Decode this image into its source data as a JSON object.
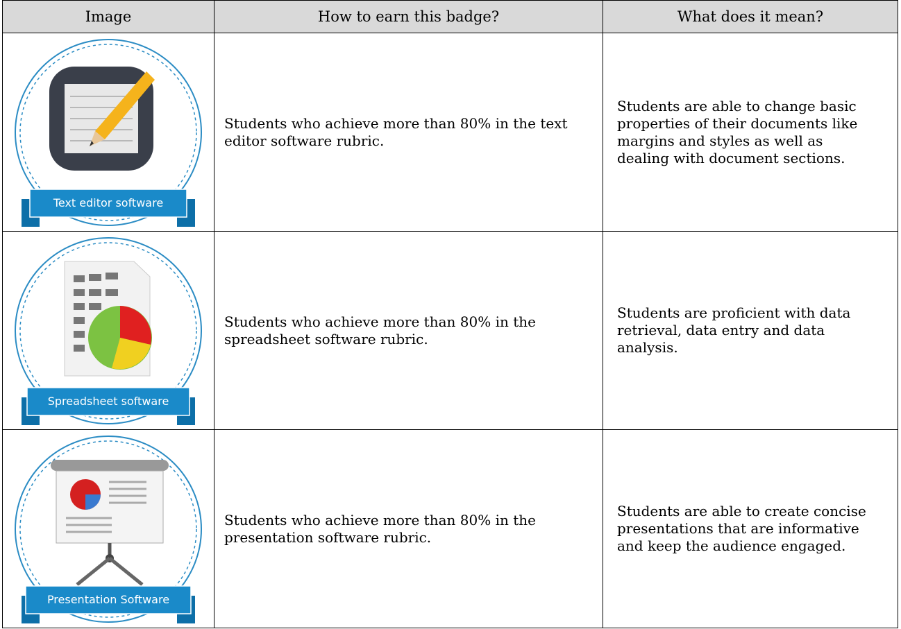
{
  "table": {
    "header": [
      "Image",
      "How to earn this badge?",
      "What does it mean?"
    ],
    "rows": [
      {
        "badge": "Text editor software",
        "how": "Students who achieve more than 80% in the text editor software rubric.",
        "meaning": "Students are able to change basic properties of their documents like margins and styles as well as dealing with document sections."
      },
      {
        "badge": "Spreadsheet software",
        "how": "Students who achieve more than 80% in the spreadsheet software rubric.",
        "meaning": "Students are proficient with data retrieval, data entry and data analysis."
      },
      {
        "badge": "Presentation Software",
        "how": "Students who achieve more than 80% in the presentation software rubric.",
        "meaning": "Students are able to create concise presentations that are informative and keep the audience engaged."
      }
    ]
  }
}
